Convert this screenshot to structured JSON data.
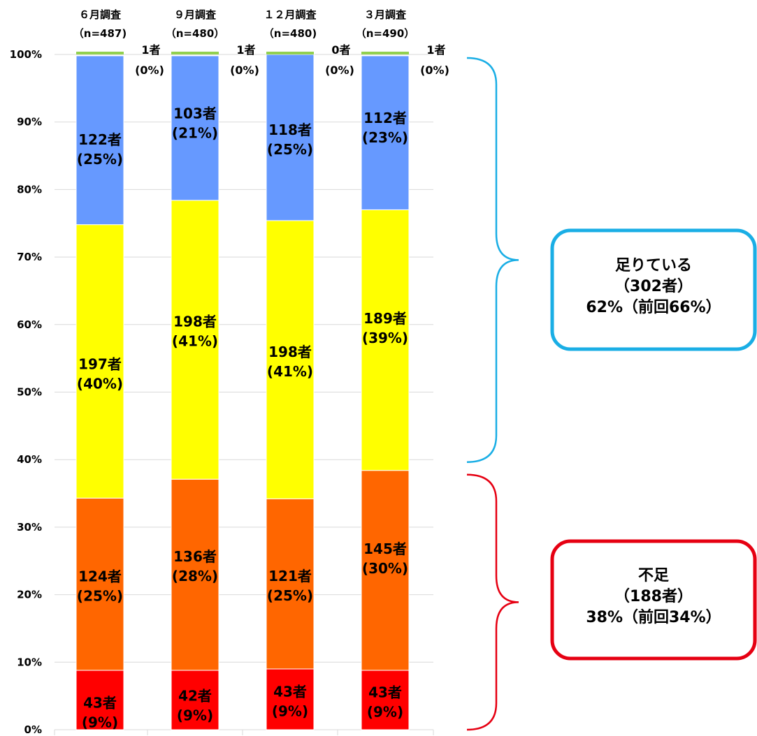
{
  "chart_data": {
    "type": "bar",
    "stacked": true,
    "categories": [
      "６月調査",
      "９月調査",
      "１２月調査",
      "３月調査"
    ],
    "sample_sizes": [
      "（n=487)",
      "（n=480）",
      "（n=480)",
      "（n=490）"
    ],
    "y_ticks": [
      "0%",
      "10%",
      "20%",
      "30%",
      "40%",
      "50%",
      "60%",
      "70%",
      "80%",
      "90%",
      "100%"
    ],
    "ylim": [
      0,
      100
    ],
    "grid": true,
    "series": [
      {
        "color": "#ff0000",
        "values": [
          8.8,
          8.8,
          9.0,
          8.8
        ],
        "labels": [
          [
            "43者",
            "(9%)"
          ],
          [
            "42者",
            "(9%)"
          ],
          [
            "43者",
            "(9%)"
          ],
          [
            "43者",
            "(9%)"
          ]
        ]
      },
      {
        "color": "#ff6600",
        "values": [
          25.5,
          28.3,
          25.2,
          29.6
        ],
        "labels": [
          [
            "124者",
            "(25%)"
          ],
          [
            "136者",
            "(28%)"
          ],
          [
            "121者",
            "(25%)"
          ],
          [
            "145者",
            "(30%)"
          ]
        ]
      },
      {
        "color": "#ffff00",
        "values": [
          40.5,
          41.3,
          41.2,
          38.6
        ],
        "labels": [
          [
            "197者",
            "(40%)"
          ],
          [
            "198者",
            "(41%)"
          ],
          [
            "198者",
            "(41%)"
          ],
          [
            "189者",
            "(39%)"
          ]
        ]
      },
      {
        "color": "#6699ff",
        "values": [
          25.0,
          21.4,
          24.6,
          22.8
        ],
        "labels": [
          [
            "122者",
            "(25%)"
          ],
          [
            "103者",
            "(21%)"
          ],
          [
            "118者",
            "(25%)"
          ],
          [
            "112者",
            "(23%)"
          ]
        ]
      },
      {
        "color": "#92d050",
        "values": [
          0.2,
          0.2,
          0.0,
          0.2
        ],
        "labels": [
          [
            "1者",
            "(0%)"
          ],
          [
            "1者",
            "(0%)"
          ],
          [
            "0者",
            "(0%)"
          ],
          [
            "1者",
            "(0%)"
          ]
        ]
      }
    ],
    "annotations": [
      {
        "lines": [
          "足りている",
          "（302者）",
          "62%（前回66%）"
        ],
        "color": "#1aaee5",
        "range": [
          38.6,
          100
        ]
      },
      {
        "lines": [
          "不足",
          "（188者）",
          "38%（前回34%）"
        ],
        "color": "#e60012",
        "range": [
          0,
          38.6
        ]
      }
    ]
  }
}
